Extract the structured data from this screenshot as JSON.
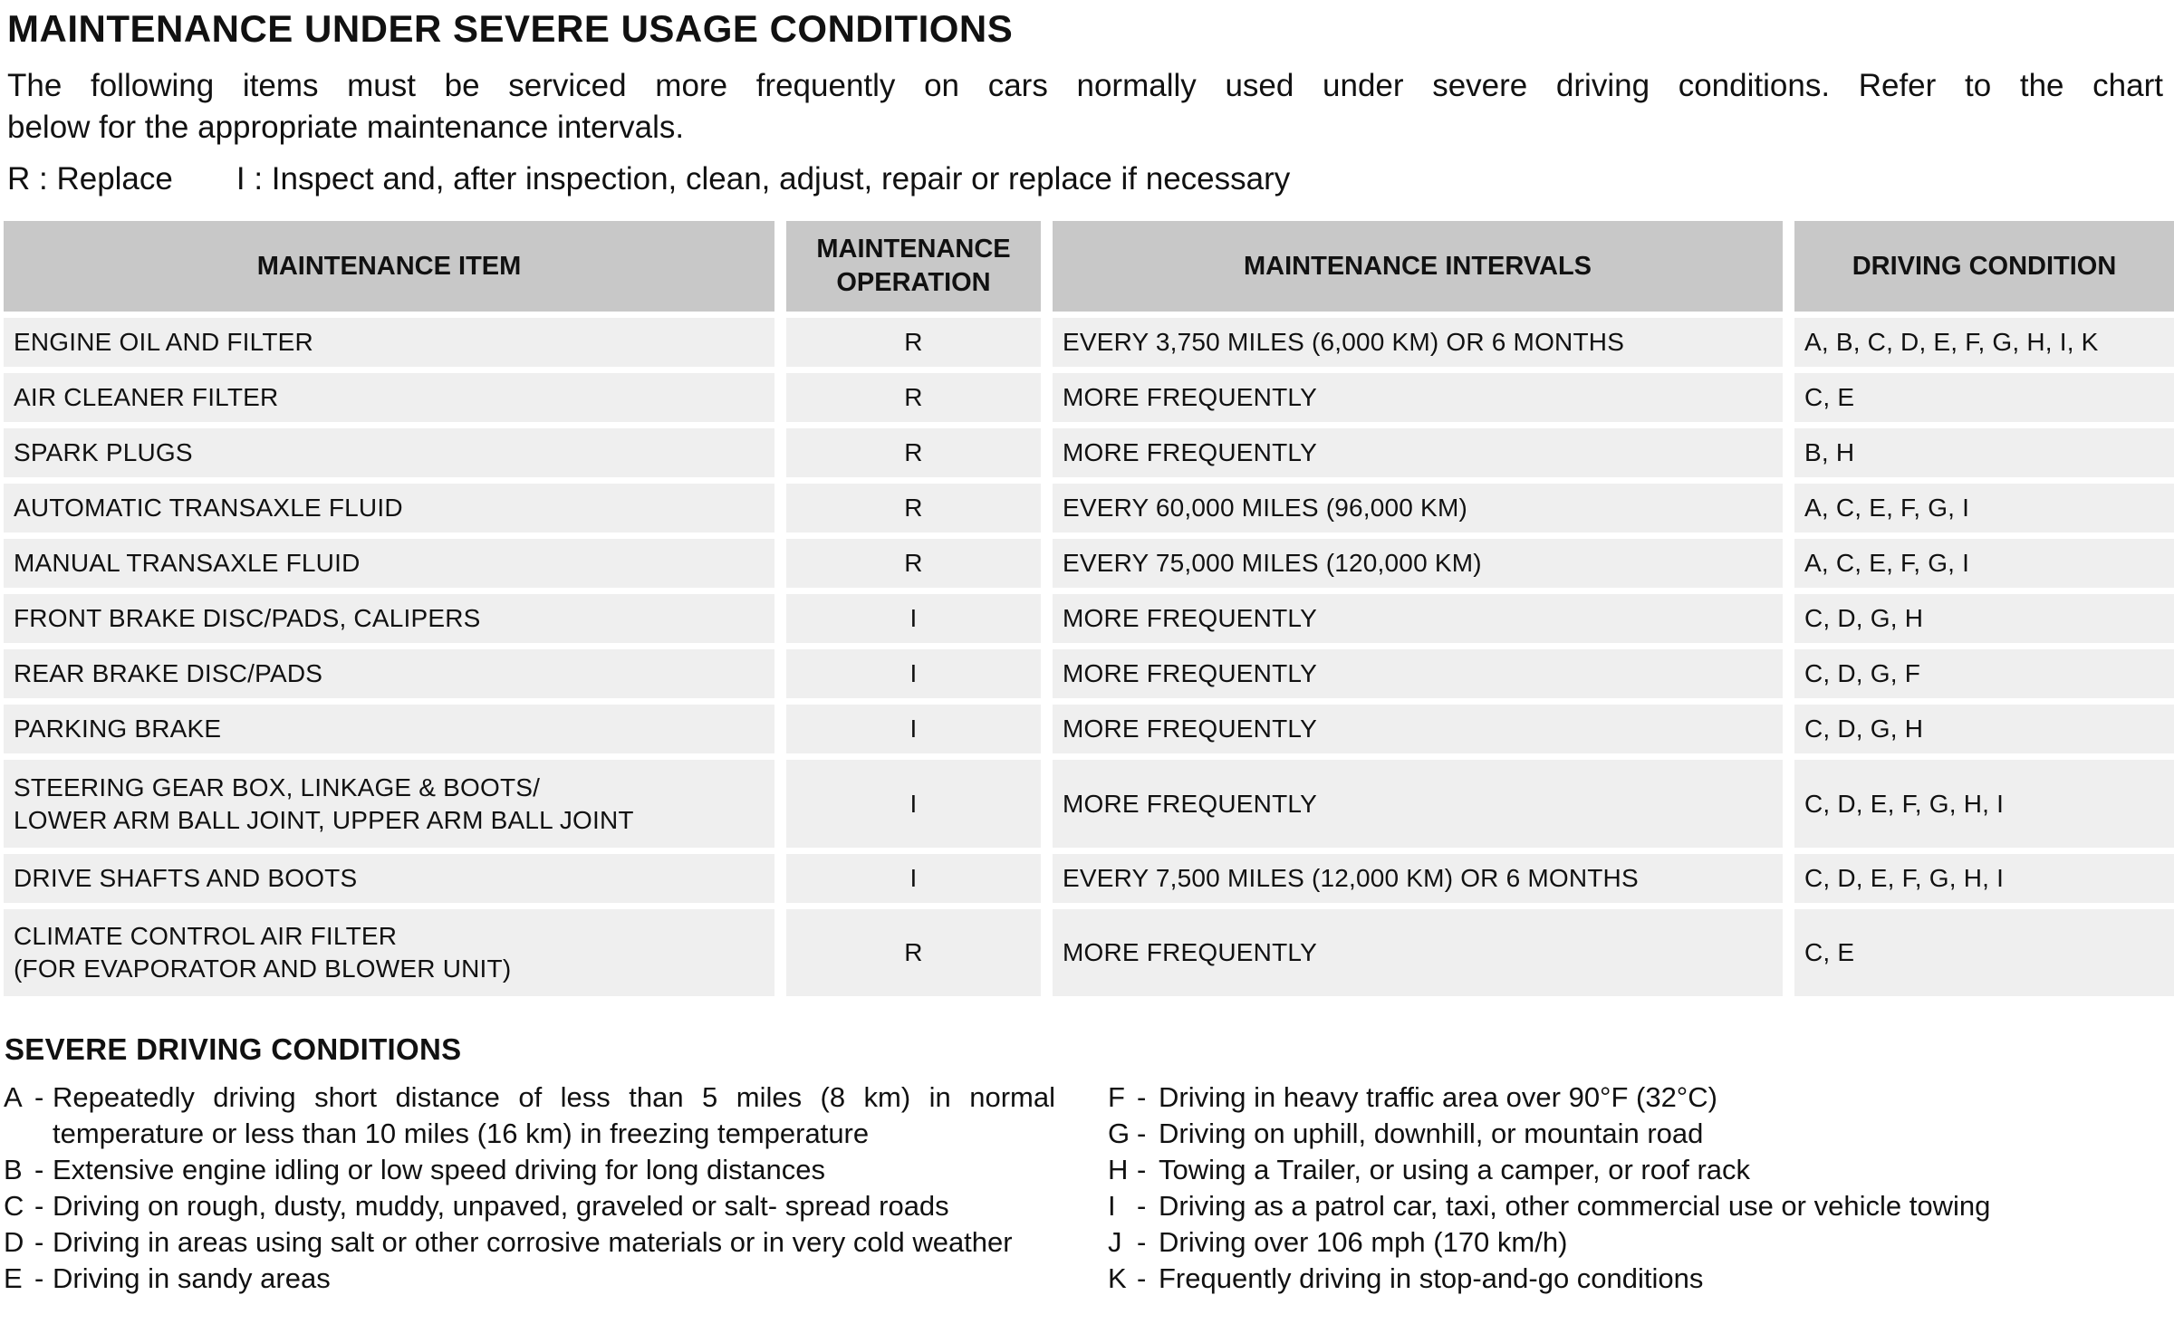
{
  "page": {
    "title": "MAINTENANCE UNDER SEVERE USAGE CONDITIONS",
    "intro": {
      "line1": "The following items must be serviced more frequently on cars normally used under severe driving conditions. Refer to the chart",
      "line2": "below for the appropriate maintenance intervals."
    },
    "legend": {
      "replace": "R : Replace",
      "inspect": "I : Inspect and, after inspection, clean, adjust, repair or replace if necessary"
    }
  },
  "colors": {
    "background": "#ffffff",
    "text": "#111111",
    "table_header_bg": "#c8c8c8",
    "table_row_bg": "#efefef"
  },
  "table": {
    "headers": [
      "MAINTENANCE ITEM",
      "MAINTENANCE OPERATION",
      "MAINTENANCE INTERVALS",
      "DRIVING CONDITION"
    ],
    "rows": [
      {
        "item": "ENGINE OIL AND FILTER",
        "operation": "R",
        "interval": "EVERY 3,750 MILES (6,000 KM) OR 6 MONTHS",
        "condition": "A, B, C, D, E, F, G, H, I, K"
      },
      {
        "item": "AIR CLEANER FILTER",
        "operation": "R",
        "interval": "MORE FREQUENTLY",
        "condition": "C, E"
      },
      {
        "item": "SPARK PLUGS",
        "operation": "R",
        "interval": "MORE FREQUENTLY",
        "condition": "B, H"
      },
      {
        "item": "AUTOMATIC TRANSAXLE FLUID",
        "operation": "R",
        "interval": "EVERY 60,000 MILES (96,000 KM)",
        "condition": "A, C, E, F, G, I"
      },
      {
        "item": "MANUAL TRANSAXLE FLUID",
        "operation": "R",
        "interval": "EVERY 75,000 MILES (120,000 KM)",
        "condition": "A, C, E, F, G, I"
      },
      {
        "item": "FRONT BRAKE DISC/PADS, CALIPERS",
        "operation": "I",
        "interval": "MORE FREQUENTLY",
        "condition": "C, D, G, H"
      },
      {
        "item": "REAR BRAKE DISC/PADS",
        "operation": "I",
        "interval": "MORE FREQUENTLY",
        "condition": "C, D, G, F"
      },
      {
        "item": "PARKING BRAKE",
        "operation": "I",
        "interval": "MORE FREQUENTLY",
        "condition": "C, D, G, H"
      },
      {
        "item": "STEERING GEAR BOX, LINKAGE & BOOTS/\nLOWER ARM BALL JOINT, UPPER ARM BALL JOINT",
        "operation": "I",
        "interval": "MORE FREQUENTLY",
        "condition": "C, D, E, F, G, H, I"
      },
      {
        "item": "DRIVE SHAFTS AND BOOTS",
        "operation": "I",
        "interval": "EVERY 7,500 MILES (12,000 KM) OR 6 MONTHS",
        "condition": "C, D, E, F, G, H, I"
      },
      {
        "item": "CLIMATE CONTROL AIR FILTER\n(FOR EVAPORATOR AND BLOWER UNIT)",
        "operation": "R",
        "interval": "MORE FREQUENTLY",
        "condition": "C, E"
      }
    ]
  },
  "conditions": {
    "heading": "SEVERE DRIVING CONDITIONS",
    "separator": "-",
    "left": [
      {
        "letter": "A",
        "text": "Repeatedly driving short distance of less than 5 miles (8 km) in normal temperature or less than 10 miles (16 km) in freezing temperature"
      },
      {
        "letter": "B",
        "text": "Extensive engine idling or low speed driving for long distances"
      },
      {
        "letter": "C",
        "text": "Driving on rough, dusty, muddy, unpaved, graveled or salt- spread roads"
      },
      {
        "letter": "D",
        "text": "Driving in areas using salt or other corrosive materials or in very cold weather"
      },
      {
        "letter": "E",
        "text": "Driving in sandy areas"
      }
    ],
    "right": [
      {
        "letter": "F",
        "text": "Driving in heavy traffic area over 90°F (32°C)"
      },
      {
        "letter": "G",
        "text": "Driving on uphill, downhill, or mountain road"
      },
      {
        "letter": "H",
        "text": "Towing a Trailer, or using a camper, or roof rack"
      },
      {
        "letter": "I",
        "text": "Driving as a patrol car, taxi, other commercial use or vehicle towing"
      },
      {
        "letter": "J",
        "text": "Driving over 106 mph (170 km/h)"
      },
      {
        "letter": "K",
        "text": "Frequently driving in stop-and-go conditions"
      }
    ]
  }
}
